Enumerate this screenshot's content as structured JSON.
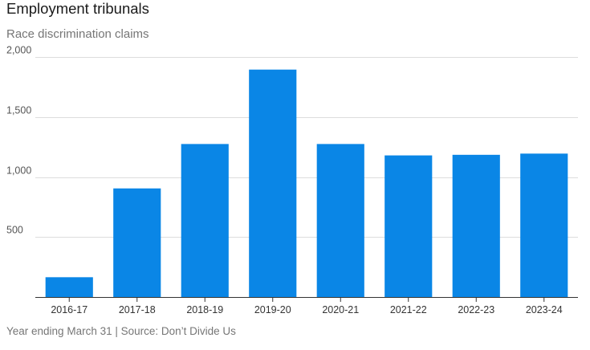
{
  "title": "Employment tribunals",
  "subtitle": "Race discrimination claims",
  "footer": "Year ending March 31 | Source: Don’t Divide Us",
  "colors": {
    "bar": "#0a86e6"
  },
  "chart_data": {
    "type": "bar",
    "title": "Employment tribunals",
    "subtitle": "Race discrimination claims",
    "xlabel": "",
    "ylabel": "",
    "categories": [
      "2016-17",
      "2017-18",
      "2018-19",
      "2019-20",
      "2020-21",
      "2021-22",
      "2022-23",
      "2023-24"
    ],
    "values": [
      165,
      905,
      1275,
      1895,
      1275,
      1180,
      1185,
      1195
    ],
    "ylim": [
      0,
      2000
    ],
    "yticks": [
      500,
      1000,
      1500,
      2000
    ],
    "ytick_labels": [
      "500",
      "1,000",
      "1,500",
      "2,000"
    ],
    "grid": true,
    "legend": "none"
  }
}
